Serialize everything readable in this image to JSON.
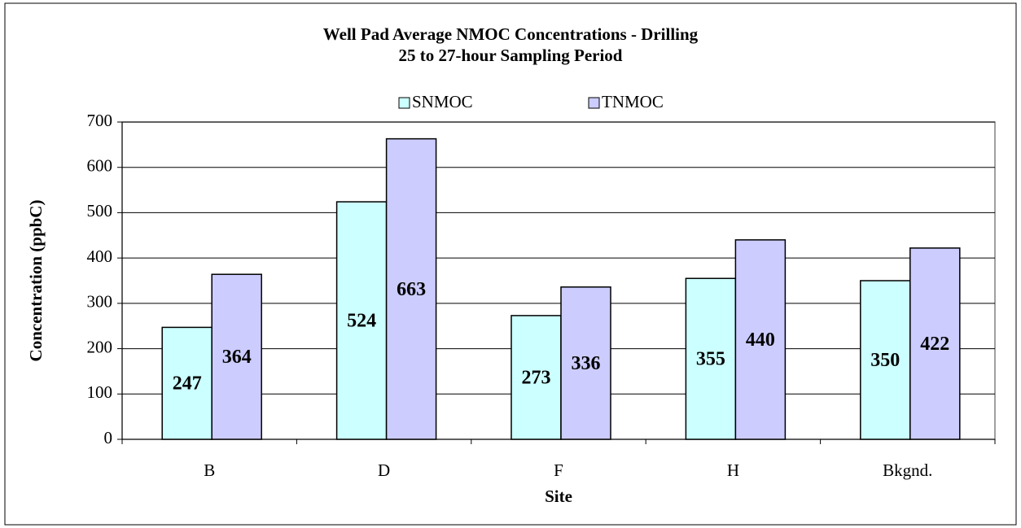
{
  "chart_data": {
    "type": "bar",
    "title": "Well Pad Average NMOC Concentrations - Drilling",
    "subtitle": "25 to 27-hour Sampling Period",
    "x_label": "Site",
    "y_label": "Concentration (ppbC)",
    "categories": [
      "B",
      "D",
      "F",
      "H",
      "Bkgnd."
    ],
    "series": [
      {
        "name": "SNMOC",
        "color": "#ccffff",
        "values": [
          247,
          524,
          273,
          355,
          350
        ]
      },
      {
        "name": "TNMOC",
        "color": "#ccccff",
        "values": [
          364,
          663,
          336,
          440,
          422
        ]
      }
    ],
    "ylim": [
      0,
      700
    ],
    "yticks": [
      0,
      100,
      200,
      300,
      400,
      500,
      600,
      700
    ],
    "grid": true,
    "legend": "top",
    "data_labels": true
  }
}
